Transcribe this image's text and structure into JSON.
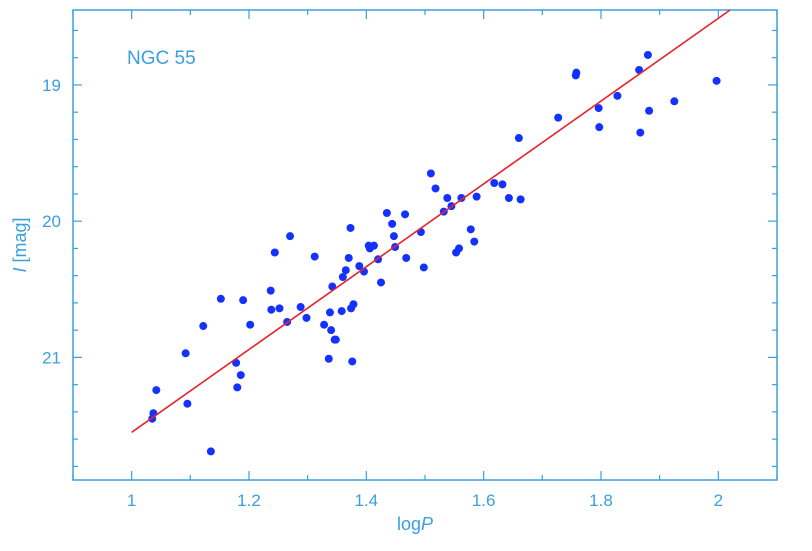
{
  "chart_data": {
    "type": "scatter",
    "annotation": "NGC 55",
    "xlabel": "logP",
    "xlabel_parts": [
      "log",
      "P"
    ],
    "ylabel": "I [mag]",
    "ylabel_parts": [
      "I",
      " [mag]"
    ],
    "xlim": [
      0.9,
      2.1
    ],
    "ylim": [
      21.9,
      18.45
    ],
    "x_ticks": [
      "1",
      "1.2",
      "1.4",
      "1.6",
      "1.8",
      "2"
    ],
    "y_ticks": [
      "19",
      "20",
      "21"
    ],
    "grid": false,
    "legend": "none",
    "colors": {
      "axis": "#3aa0dd",
      "points": "#1432ff",
      "fit_line": "#e8232c"
    },
    "fit_line": {
      "x": [
        1.0,
        2.02
      ],
      "y": [
        21.55,
        18.45
      ]
    },
    "points": [
      {
        "x": 1.035,
        "y": 21.45
      },
      {
        "x": 1.037,
        "y": 21.41
      },
      {
        "x": 1.042,
        "y": 21.24
      },
      {
        "x": 1.092,
        "y": 20.97
      },
      {
        "x": 1.095,
        "y": 21.34
      },
      {
        "x": 1.122,
        "y": 20.77
      },
      {
        "x": 1.135,
        "y": 21.69
      },
      {
        "x": 1.152,
        "y": 20.57
      },
      {
        "x": 1.178,
        "y": 21.04
      },
      {
        "x": 1.18,
        "y": 21.22
      },
      {
        "x": 1.186,
        "y": 21.13
      },
      {
        "x": 1.19,
        "y": 20.58
      },
      {
        "x": 1.202,
        "y": 20.76
      },
      {
        "x": 1.237,
        "y": 20.51
      },
      {
        "x": 1.238,
        "y": 20.65
      },
      {
        "x": 1.244,
        "y": 20.23
      },
      {
        "x": 1.252,
        "y": 20.64
      },
      {
        "x": 1.265,
        "y": 20.74
      },
      {
        "x": 1.27,
        "y": 20.11
      },
      {
        "x": 1.288,
        "y": 20.63
      },
      {
        "x": 1.298,
        "y": 20.71
      },
      {
        "x": 1.312,
        "y": 20.26
      },
      {
        "x": 1.328,
        "y": 20.76
      },
      {
        "x": 1.336,
        "y": 21.01
      },
      {
        "x": 1.338,
        "y": 20.67
      },
      {
        "x": 1.34,
        "y": 20.8
      },
      {
        "x": 1.342,
        "y": 20.48
      },
      {
        "x": 1.346,
        "y": 20.87
      },
      {
        "x": 1.348,
        "y": 20.87
      },
      {
        "x": 1.358,
        "y": 20.66
      },
      {
        "x": 1.36,
        "y": 20.41
      },
      {
        "x": 1.365,
        "y": 20.36
      },
      {
        "x": 1.37,
        "y": 20.27
      },
      {
        "x": 1.373,
        "y": 20.05
      },
      {
        "x": 1.374,
        "y": 20.64
      },
      {
        "x": 1.376,
        "y": 21.03
      },
      {
        "x": 1.378,
        "y": 20.61
      },
      {
        "x": 1.388,
        "y": 20.33
      },
      {
        "x": 1.396,
        "y": 20.37
      },
      {
        "x": 1.404,
        "y": 20.18
      },
      {
        "x": 1.406,
        "y": 20.2
      },
      {
        "x": 1.413,
        "y": 20.18
      },
      {
        "x": 1.42,
        "y": 20.28
      },
      {
        "x": 1.425,
        "y": 20.45
      },
      {
        "x": 1.435,
        "y": 19.94
      },
      {
        "x": 1.444,
        "y": 20.02
      },
      {
        "x": 1.447,
        "y": 20.11
      },
      {
        "x": 1.449,
        "y": 20.19
      },
      {
        "x": 1.466,
        "y": 19.95
      },
      {
        "x": 1.468,
        "y": 20.27
      },
      {
        "x": 1.493,
        "y": 20.08
      },
      {
        "x": 1.498,
        "y": 20.34
      },
      {
        "x": 1.51,
        "y": 19.65
      },
      {
        "x": 1.518,
        "y": 19.76
      },
      {
        "x": 1.532,
        "y": 19.93
      },
      {
        "x": 1.538,
        "y": 19.83
      },
      {
        "x": 1.545,
        "y": 19.89
      },
      {
        "x": 1.553,
        "y": 20.23
      },
      {
        "x": 1.558,
        "y": 20.2
      },
      {
        "x": 1.562,
        "y": 19.83
      },
      {
        "x": 1.578,
        "y": 20.06
      },
      {
        "x": 1.584,
        "y": 20.15
      },
      {
        "x": 1.588,
        "y": 19.82
      },
      {
        "x": 1.618,
        "y": 19.72
      },
      {
        "x": 1.632,
        "y": 19.73
      },
      {
        "x": 1.643,
        "y": 19.83
      },
      {
        "x": 1.66,
        "y": 19.39
      },
      {
        "x": 1.663,
        "y": 19.84
      },
      {
        "x": 1.727,
        "y": 19.24
      },
      {
        "x": 1.757,
        "y": 18.93
      },
      {
        "x": 1.758,
        "y": 18.91
      },
      {
        "x": 1.796,
        "y": 19.17
      },
      {
        "x": 1.797,
        "y": 19.31
      },
      {
        "x": 1.828,
        "y": 19.08
      },
      {
        "x": 1.865,
        "y": 18.89
      },
      {
        "x": 1.867,
        "y": 19.35
      },
      {
        "x": 1.88,
        "y": 18.78
      },
      {
        "x": 1.882,
        "y": 19.19
      },
      {
        "x": 1.925,
        "y": 19.12
      },
      {
        "x": 1.997,
        "y": 18.97
      }
    ]
  }
}
